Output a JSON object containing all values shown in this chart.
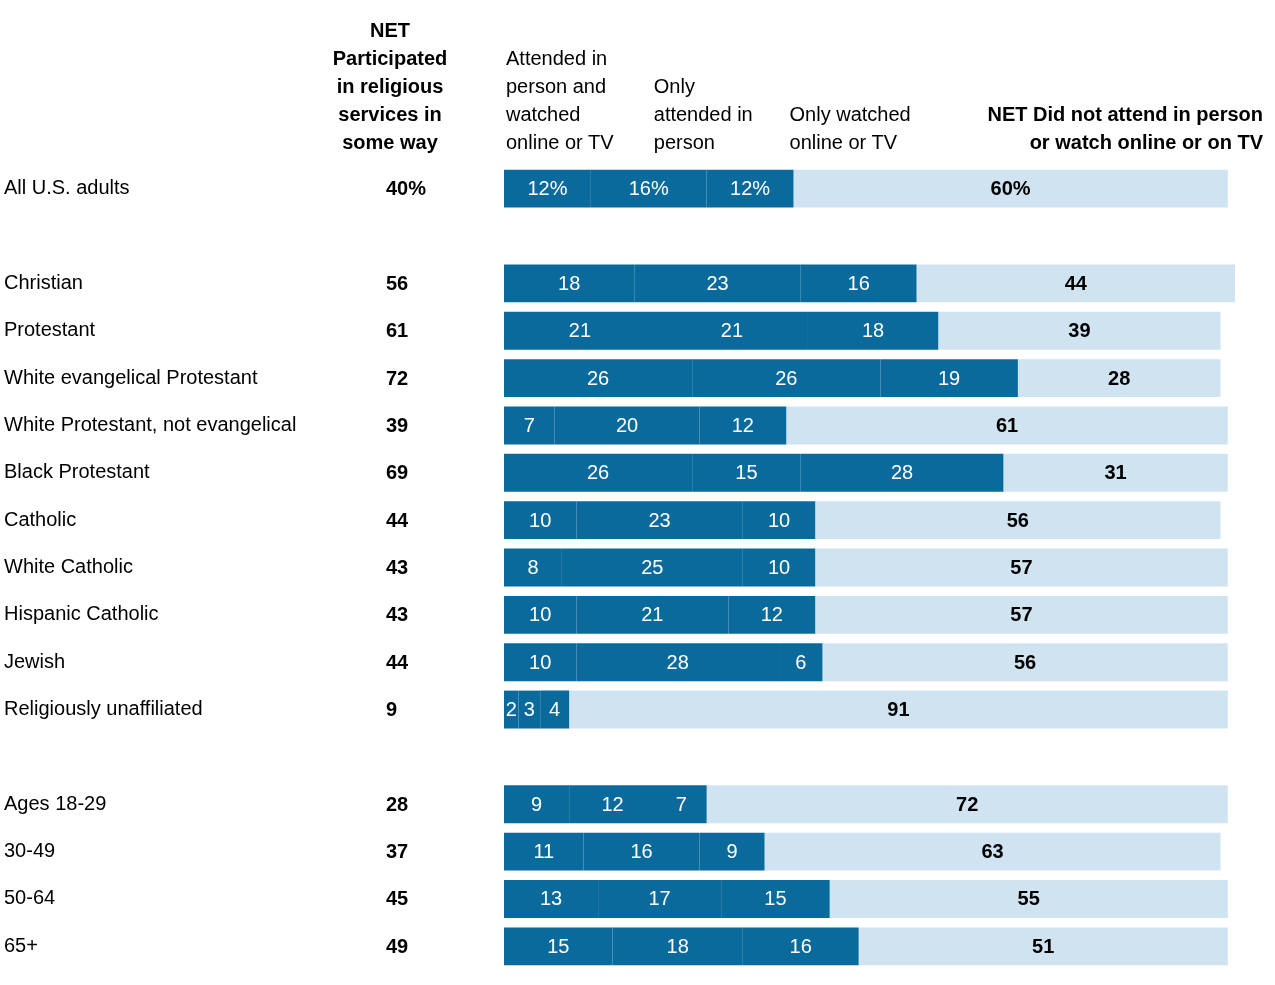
{
  "chart_data": {
    "type": "bar",
    "orientation": "horizontal",
    "stacked": true,
    "legend": "top",
    "xlim": [
      0,
      101
    ],
    "tick_labels": "y",
    "categories": [
      "All U.S. adults",
      null,
      "Christian",
      "Protestant",
      "White evangelical Protestant",
      "White Protestant, not evangelical",
      "Black Protestant",
      "Catholic",
      "White Catholic",
      "Hispanic Catholic",
      "Jewish",
      "Religiously unaffiliated",
      null,
      "Ages 18-29",
      "30-49",
      "50-64",
      "65+"
    ],
    "series": [
      {
        "name": "Attended in person and watched online or TV",
        "color": "#0b6a9c",
        "values": [
          12,
          null,
          18,
          21,
          26,
          7,
          26,
          10,
          8,
          10,
          10,
          2,
          null,
          9,
          11,
          13,
          15
        ],
        "value_labels": [
          "12%",
          null,
          "18",
          "21",
          "26",
          "7",
          "26",
          "10",
          "8",
          "10",
          "10",
          "2",
          null,
          "9",
          "11",
          "13",
          "15"
        ]
      },
      {
        "name": "Only attended in person",
        "color": "#0b6a9c",
        "values": [
          16,
          null,
          23,
          21,
          26,
          20,
          15,
          23,
          25,
          21,
          28,
          3,
          null,
          12,
          16,
          17,
          18
        ],
        "value_labels": [
          "16%",
          null,
          "23",
          "21",
          "26",
          "20",
          "15",
          "23",
          "25",
          "21",
          "28",
          "3",
          null,
          "12",
          "16",
          "17",
          "18"
        ]
      },
      {
        "name": "Only watched online or TV",
        "color": "#0b6a9c",
        "values": [
          12,
          null,
          16,
          18,
          19,
          12,
          28,
          10,
          10,
          12,
          6,
          4,
          null,
          7,
          9,
          15,
          16
        ],
        "value_labels": [
          "12%",
          null,
          "16",
          "18",
          "19",
          "12",
          "28",
          "10",
          "10",
          "12",
          "6",
          "4",
          null,
          "7",
          "9",
          "15",
          "16"
        ]
      },
      {
        "name": "NET Did not attend in person or watch online or on TV",
        "color": "#d0e3f0",
        "values": [
          60,
          null,
          44,
          39,
          28,
          61,
          31,
          56,
          57,
          57,
          56,
          91,
          null,
          72,
          63,
          55,
          51
        ],
        "value_labels": [
          "60%",
          null,
          "44",
          "39",
          "28",
          "61",
          "31",
          "56",
          "57",
          "57",
          "56",
          "91",
          null,
          "72",
          "63",
          "55",
          "51"
        ]
      }
    ],
    "annotations": [
      "NET Participated in religious services in some way",
      "40%",
      "56",
      "61",
      "72",
      "39",
      "69",
      "44",
      "43",
      "43",
      "44",
      "9",
      "28",
      "37",
      "45",
      "49"
    ]
  }
}
